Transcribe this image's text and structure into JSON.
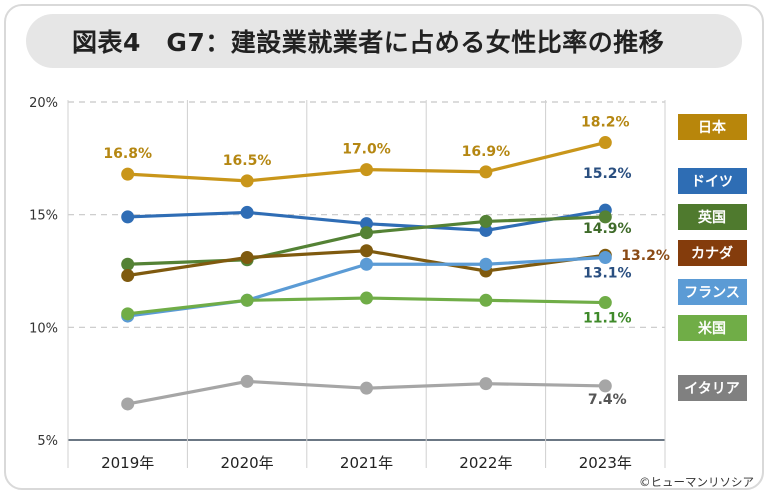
{
  "title": "図表4　G7：建設業就業者に占める女性比率の推移",
  "credit": "©ヒューマンリソシア",
  "chart_data": {
    "type": "line",
    "title": "図表4　G7：建設業就業者に占める女性比率の推移",
    "categories": [
      "2019年",
      "2020年",
      "2021年",
      "2022年",
      "2023年"
    ],
    "yticks": [
      "5%",
      "10%",
      "15%",
      "20%"
    ],
    "ylim": [
      5,
      20
    ],
    "grid": true,
    "legend_placement": "right",
    "series": [
      {
        "name": "日本",
        "color": "#c9961a",
        "label_color": "#b58712",
        "values": [
          16.8,
          16.5,
          17.0,
          16.9,
          18.2
        ],
        "labels": [
          "16.8%",
          "16.5%",
          "17.0%",
          "16.9%",
          "18.2%"
        ]
      },
      {
        "name": "ドイツ",
        "color": "#2f6db5",
        "label_color": "#2a4f80",
        "values": [
          14.9,
          15.1,
          14.6,
          14.3,
          15.2
        ],
        "labels": [
          "",
          "",
          "",
          "",
          "15.2%"
        ]
      },
      {
        "name": "英国",
        "color": "#548235",
        "label_color": "#3f6b2a",
        "values": [
          12.8,
          13.0,
          14.2,
          14.7,
          14.9
        ],
        "labels": [
          "",
          "",
          "",
          "",
          "14.9%"
        ]
      },
      {
        "name": "カナダ",
        "color": "#7f5a0f",
        "label_color": "#8a4b16",
        "values": [
          12.3,
          13.1,
          13.4,
          12.5,
          13.2
        ],
        "labels": [
          "",
          "",
          "",
          "",
          "13.2%"
        ]
      },
      {
        "name": "フランス",
        "color": "#5b9bd5",
        "label_color": "#2a4f80",
        "values": [
          10.5,
          11.2,
          12.8,
          12.8,
          13.1
        ],
        "labels": [
          "",
          "",
          "",
          "",
          "13.1%"
        ]
      },
      {
        "name": "米国",
        "color": "#70ad47",
        "label_color": "#3f8a2a",
        "values": [
          10.6,
          11.2,
          11.3,
          11.2,
          11.1
        ],
        "labels": [
          "",
          "",
          "",
          "",
          "11.1%"
        ]
      },
      {
        "name": "イタリア",
        "color": "#a6a6a6",
        "label_color": "#555555",
        "values": [
          6.6,
          7.6,
          7.3,
          7.5,
          7.4
        ],
        "labels": [
          "",
          "",
          "",
          "",
          "7.4%"
        ]
      }
    ],
    "legend_colors": [
      "#b8860b",
      "#2e6db4",
      "#4f7a2e",
      "#843c0c",
      "#5b9bd5",
      "#70ad47",
      "#808080"
    ]
  }
}
